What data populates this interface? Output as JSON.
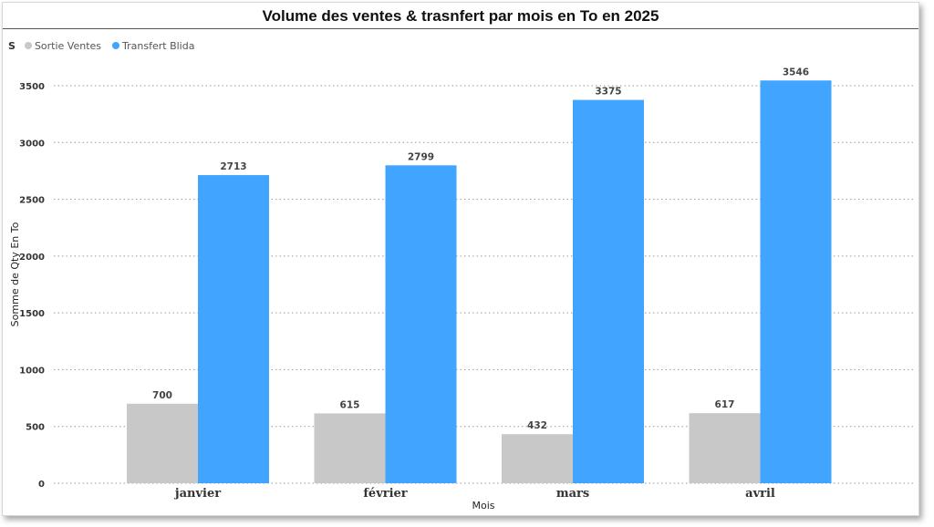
{
  "chart_data": {
    "type": "bar",
    "title": "Volume des ventes & trasnfert par mois en To en 2025",
    "xlabel": "Mois",
    "ylabel": "Somme de Qty En To",
    "categories": [
      "janvier",
      "février",
      "mars",
      "avril"
    ],
    "series": [
      {
        "name": "Sortie Ventes",
        "values": [
          700,
          615,
          432,
          617
        ],
        "color": "#c8c8c8"
      },
      {
        "name": "Transfert Blida",
        "values": [
          2713,
          2799,
          3375,
          3546
        ],
        "color": "#41a4ff"
      }
    ],
    "ylim": [
      0,
      3500
    ],
    "yticks": [
      0,
      500,
      1000,
      1500,
      2000,
      2500,
      3000,
      3500
    ],
    "grid": true,
    "legend": {
      "title": "S",
      "position": "top-left"
    },
    "data_labels": true
  }
}
